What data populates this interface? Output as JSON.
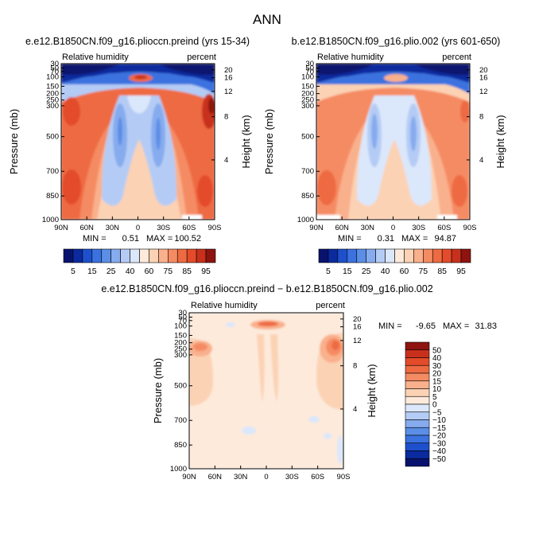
{
  "page": {
    "title": "ANN"
  },
  "stats_labels": {
    "min": "MIN =",
    "max": "MAX ="
  },
  "chart_data": [
    {
      "type": "heatmap",
      "title": "e.e12.B1850CN.f09_g16.plioccn.preind (yrs 15-34)",
      "variable": "Relative humidity",
      "units": "percent",
      "ylabel": "Pressure (mb)",
      "ylabel2": "Height (km)",
      "x_ticks": [
        "90N",
        "60N",
        "30N",
        "0",
        "30S",
        "60S",
        "90S"
      ],
      "y_ticks": [
        "30",
        "50",
        "70",
        "100",
        "150",
        "200",
        "250",
        "300",
        "500",
        "700",
        "850",
        "1000"
      ],
      "height_ticks": [
        "20",
        "16",
        "12",
        "8",
        "4"
      ],
      "min": "0.51",
      "max": "100.52",
      "colorbar": {
        "orientation": "horizontal",
        "labels": [
          "5",
          "15",
          "25",
          "40",
          "60",
          "75",
          "85",
          "95"
        ]
      }
    },
    {
      "type": "heatmap",
      "title": "b.e12.B1850CN.f09_g16.plio.002 (yrs 601-650)",
      "variable": "Relative humidity",
      "units": "percent",
      "ylabel": "Pressure (mb)",
      "ylabel2": "Height (km)",
      "x_ticks": [
        "90N",
        "60N",
        "30N",
        "0",
        "30S",
        "60S",
        "90S"
      ],
      "y_ticks": [
        "30",
        "50",
        "70",
        "100",
        "150",
        "200",
        "250",
        "300",
        "500",
        "700",
        "850",
        "1000"
      ],
      "height_ticks": [
        "20",
        "16",
        "12",
        "8",
        "4"
      ],
      "min": "0.31",
      "max": "94.87",
      "colorbar": {
        "orientation": "horizontal",
        "labels": [
          "5",
          "15",
          "25",
          "40",
          "60",
          "75",
          "85",
          "95"
        ]
      }
    },
    {
      "type": "heatmap",
      "title": "e.e12.B1850CN.f09_g16.plioccn.preind − b.e12.B1850CN.f09_g16.plio.002",
      "variable": "Relative humidity",
      "units": "percent",
      "ylabel": "Pressure (mb)",
      "ylabel2": "Height (km)",
      "x_ticks": [
        "90N",
        "60N",
        "30N",
        "0",
        "30S",
        "60S",
        "90S"
      ],
      "y_ticks": [
        "30",
        "50",
        "70",
        "100",
        "150",
        "200",
        "250",
        "300",
        "500",
        "700",
        "850",
        "1000"
      ],
      "height_ticks": [
        "20",
        "16",
        "12",
        "8",
        "4"
      ],
      "min": "-9.65",
      "max": "31.83",
      "colorbar": {
        "orientation": "vertical",
        "labels": [
          "50",
          "40",
          "30",
          "20",
          "15",
          "10",
          "5",
          "0",
          "−5",
          "−10",
          "−15",
          "−20",
          "−30",
          "−40",
          "−50"
        ]
      }
    }
  ],
  "palettes": {
    "relative_humidity": [
      "#08126e",
      "#0a2a9e",
      "#1e50cd",
      "#3b72df",
      "#5b8ee6",
      "#86abee",
      "#b4ccf5",
      "#dbe7fb",
      "#fdeadb",
      "#fcd2b4",
      "#f9b08c",
      "#f58b63",
      "#ee6a42",
      "#e34b2a",
      "#c8301c",
      "#8e1410"
    ],
    "difference": [
      "#08126e",
      "#0a2a9e",
      "#1e50cd",
      "#3b72df",
      "#5b8ee6",
      "#86abee",
      "#b4ccf5",
      "#dbe7fb",
      "#fdeadb",
      "#fcd2b4",
      "#f9b08c",
      "#f58b63",
      "#ee6a42",
      "#e34b2a",
      "#c8301c",
      "#8e1410"
    ]
  }
}
